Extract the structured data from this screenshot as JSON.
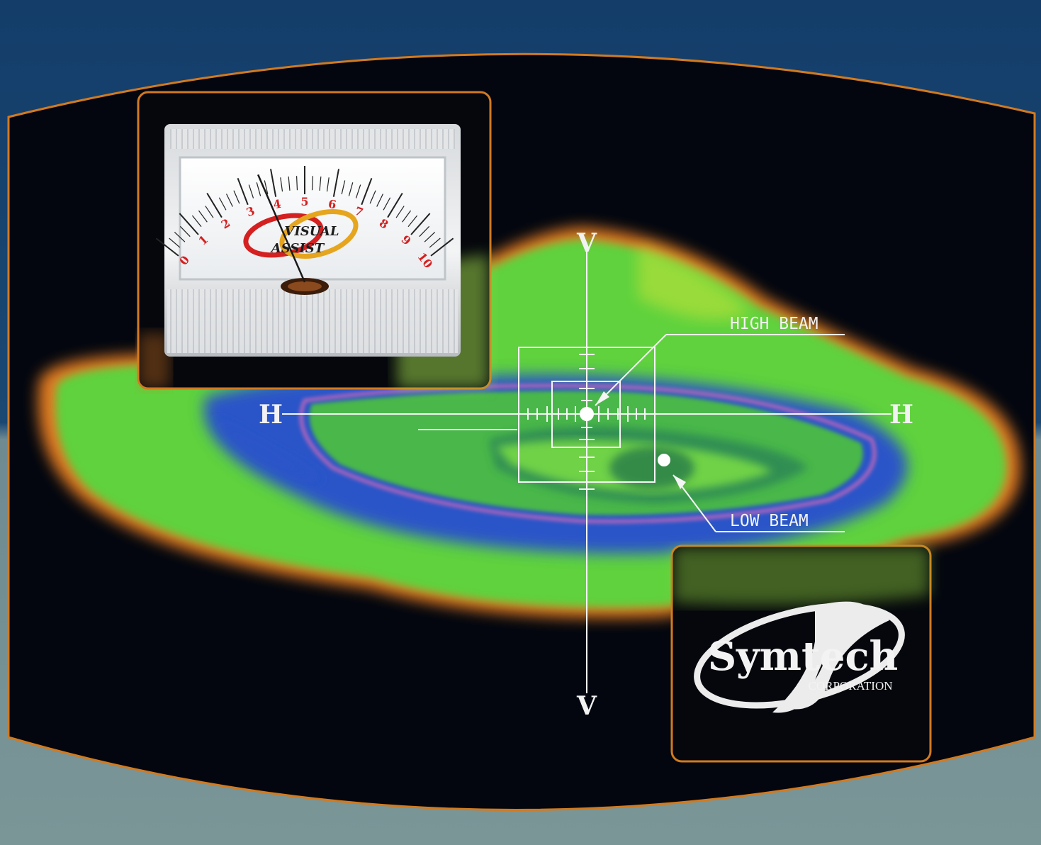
{
  "meter": {
    "scale": [
      "0",
      "1",
      "2",
      "3",
      "4",
      "5",
      "6",
      "7",
      "8",
      "9",
      "10"
    ],
    "logo_line1": "VISUAL",
    "logo_line2": "ASSIST",
    "needle_value": 3.6
  },
  "axes": {
    "v_top": "V",
    "v_bottom": "V",
    "h_left": "H",
    "h_right": "H"
  },
  "callouts": {
    "high_beam": "HIGH BEAM",
    "low_beam": "LOW BEAM"
  },
  "brand": {
    "name": "Symtech",
    "sub": "CORPORATION"
  },
  "colors": {
    "frame_orange": "#d27a1f",
    "pattern_green": "#5fd23c",
    "pattern_blue": "#2a55c8",
    "pattern_orange": "#e07a23",
    "meter_red": "#d42020"
  }
}
